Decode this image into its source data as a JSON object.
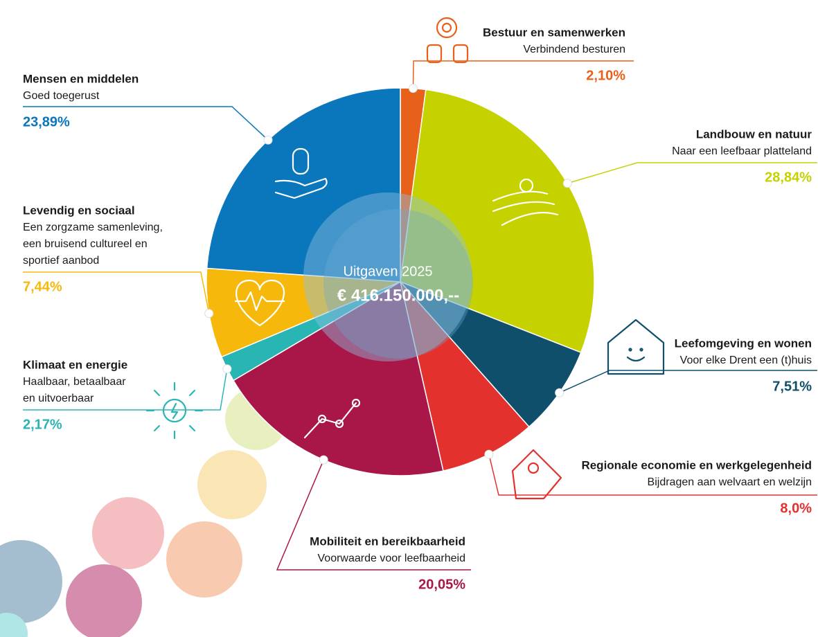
{
  "chart_data": {
    "type": "pie",
    "center_title": "Uitgaven 2025",
    "center_value": "€ 416.150.000,--",
    "categories": [
      "Bestuur en samenwerken",
      "Landbouw en natuur",
      "Leefomgeving en wonen",
      "Regionale economie en werkgelegenheid",
      "Mobiliteit en bereikbaarheid",
      "Klimaat en energie",
      "Levendig en sociaal",
      "Mensen en middelen"
    ],
    "subtitles": [
      [
        "Verbindend besturen"
      ],
      [
        "Naar een leefbaar platteland"
      ],
      [
        "Voor elke Drent een (t)huis"
      ],
      [
        "Bijdragen aan welvaart en welzijn"
      ],
      [
        "Voorwaarde voor leefbaarheid"
      ],
      [
        "Haalbaar, betaalbaar",
        "en uitvoerbaar"
      ],
      [
        "Een zorgzame samenleving,",
        "een bruisend cultureel en",
        "sportief aanbod"
      ],
      [
        "Goed toegerust"
      ]
    ],
    "values": [
      2.1,
      28.84,
      7.51,
      8.0,
      20.05,
      2.17,
      7.44,
      23.89
    ],
    "value_labels": [
      "2,10%",
      "28,84%",
      "7,51%",
      "8,0%",
      "20,05%",
      "2,17%",
      "7,44%",
      "23,89%"
    ],
    "colors": [
      "#e8611a",
      "#c5d200",
      "#0f4f6b",
      "#e3312d",
      "#a81748",
      "#2ab5b5",
      "#f6b90b",
      "#0a76bb"
    ]
  }
}
